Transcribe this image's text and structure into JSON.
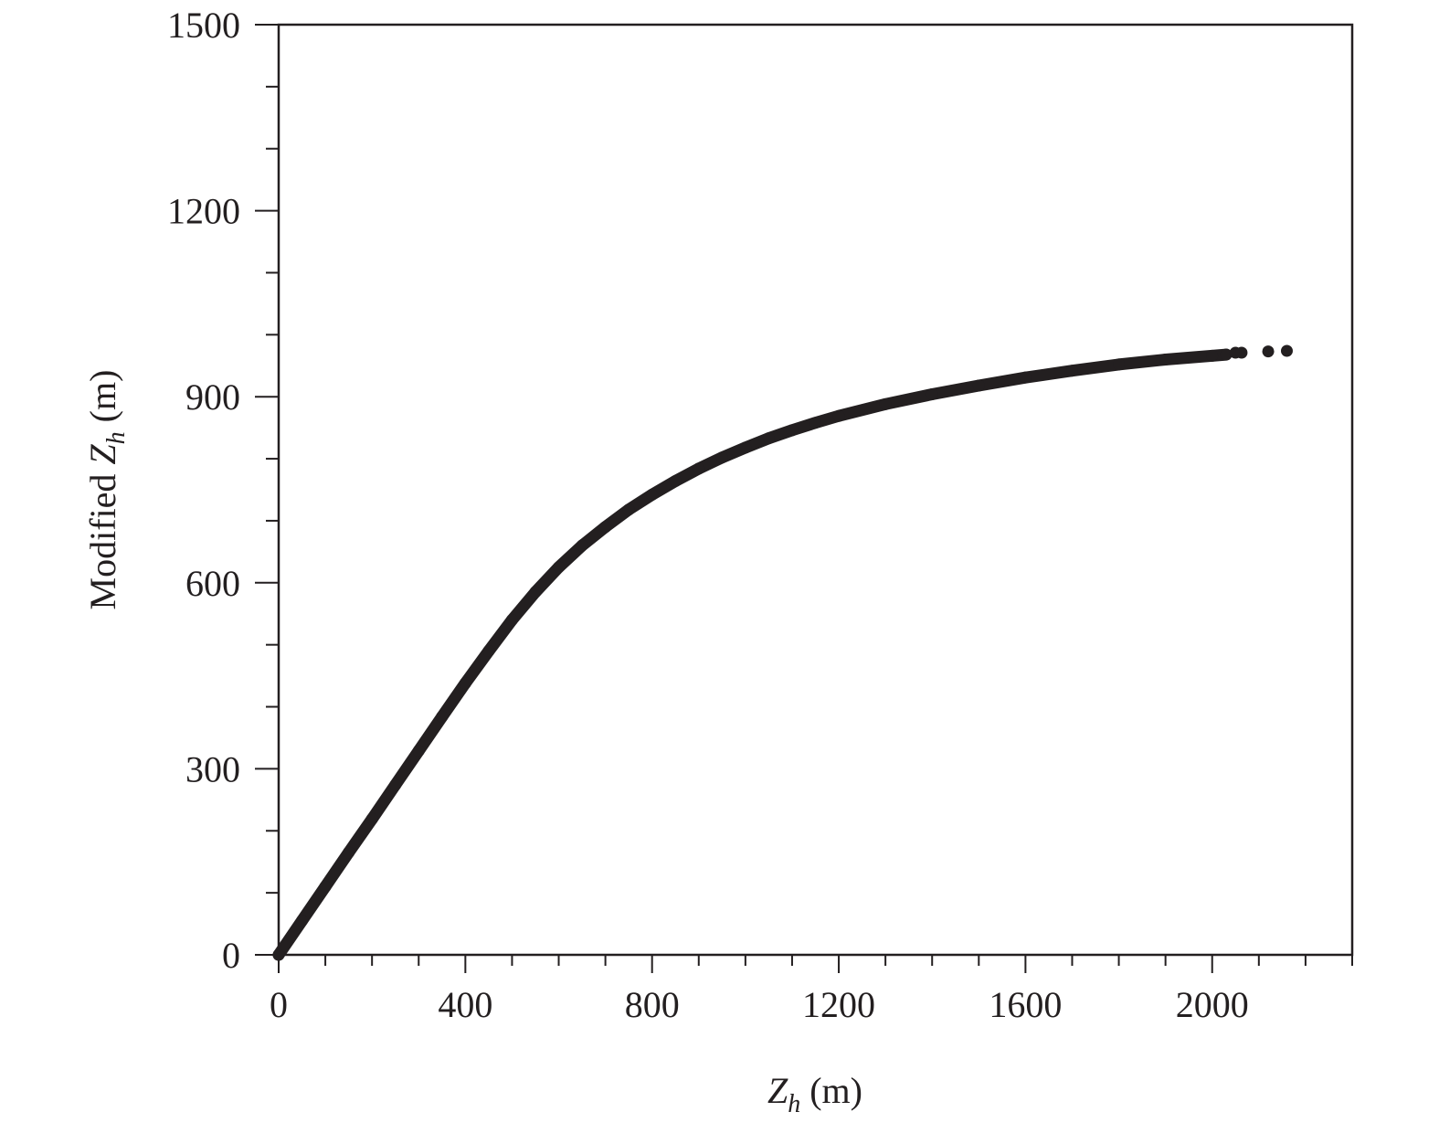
{
  "chart_data": {
    "type": "scatter",
    "title": "",
    "xlabel": {
      "prefix": "",
      "var": "Z",
      "sub": "h",
      "suffix": " (m)"
    },
    "ylabel": {
      "prefix": "Modified ",
      "var": "Z",
      "sub": "h",
      "suffix": " (m)"
    },
    "xlim": [
      0,
      2300
    ],
    "ylim": [
      0,
      1500
    ],
    "x_ticks": [
      0,
      400,
      800,
      1200,
      1600,
      2000
    ],
    "y_ticks": [
      0,
      300,
      600,
      900,
      1200,
      1500
    ],
    "x_minor_step": 100,
    "y_minor_step": 100,
    "grid": false,
    "series": [
      {
        "color": "#231f20",
        "curve_points": [
          [
            0,
            0
          ],
          [
            50,
            55
          ],
          [
            100,
            110
          ],
          [
            150,
            165
          ],
          [
            200,
            219
          ],
          [
            250,
            274
          ],
          [
            300,
            329
          ],
          [
            350,
            384
          ],
          [
            400,
            438
          ],
          [
            450,
            490
          ],
          [
            500,
            540
          ],
          [
            550,
            585
          ],
          [
            600,
            625
          ],
          [
            650,
            660
          ],
          [
            700,
            690
          ],
          [
            750,
            718
          ],
          [
            800,
            742
          ],
          [
            850,
            764
          ],
          [
            900,
            784
          ],
          [
            950,
            802
          ],
          [
            1000,
            818
          ],
          [
            1050,
            833
          ],
          [
            1100,
            846
          ],
          [
            1150,
            858
          ],
          [
            1200,
            869
          ],
          [
            1300,
            888
          ],
          [
            1400,
            904
          ],
          [
            1500,
            918
          ],
          [
            1600,
            931
          ],
          [
            1700,
            942
          ],
          [
            1800,
            952
          ],
          [
            1900,
            960
          ],
          [
            2000,
            966
          ],
          [
            2030,
            968
          ]
        ],
        "outlier_points": [
          [
            2050,
            971
          ],
          [
            2063,
            971
          ],
          [
            2120,
            973
          ],
          [
            2160,
            974
          ]
        ]
      }
    ]
  }
}
